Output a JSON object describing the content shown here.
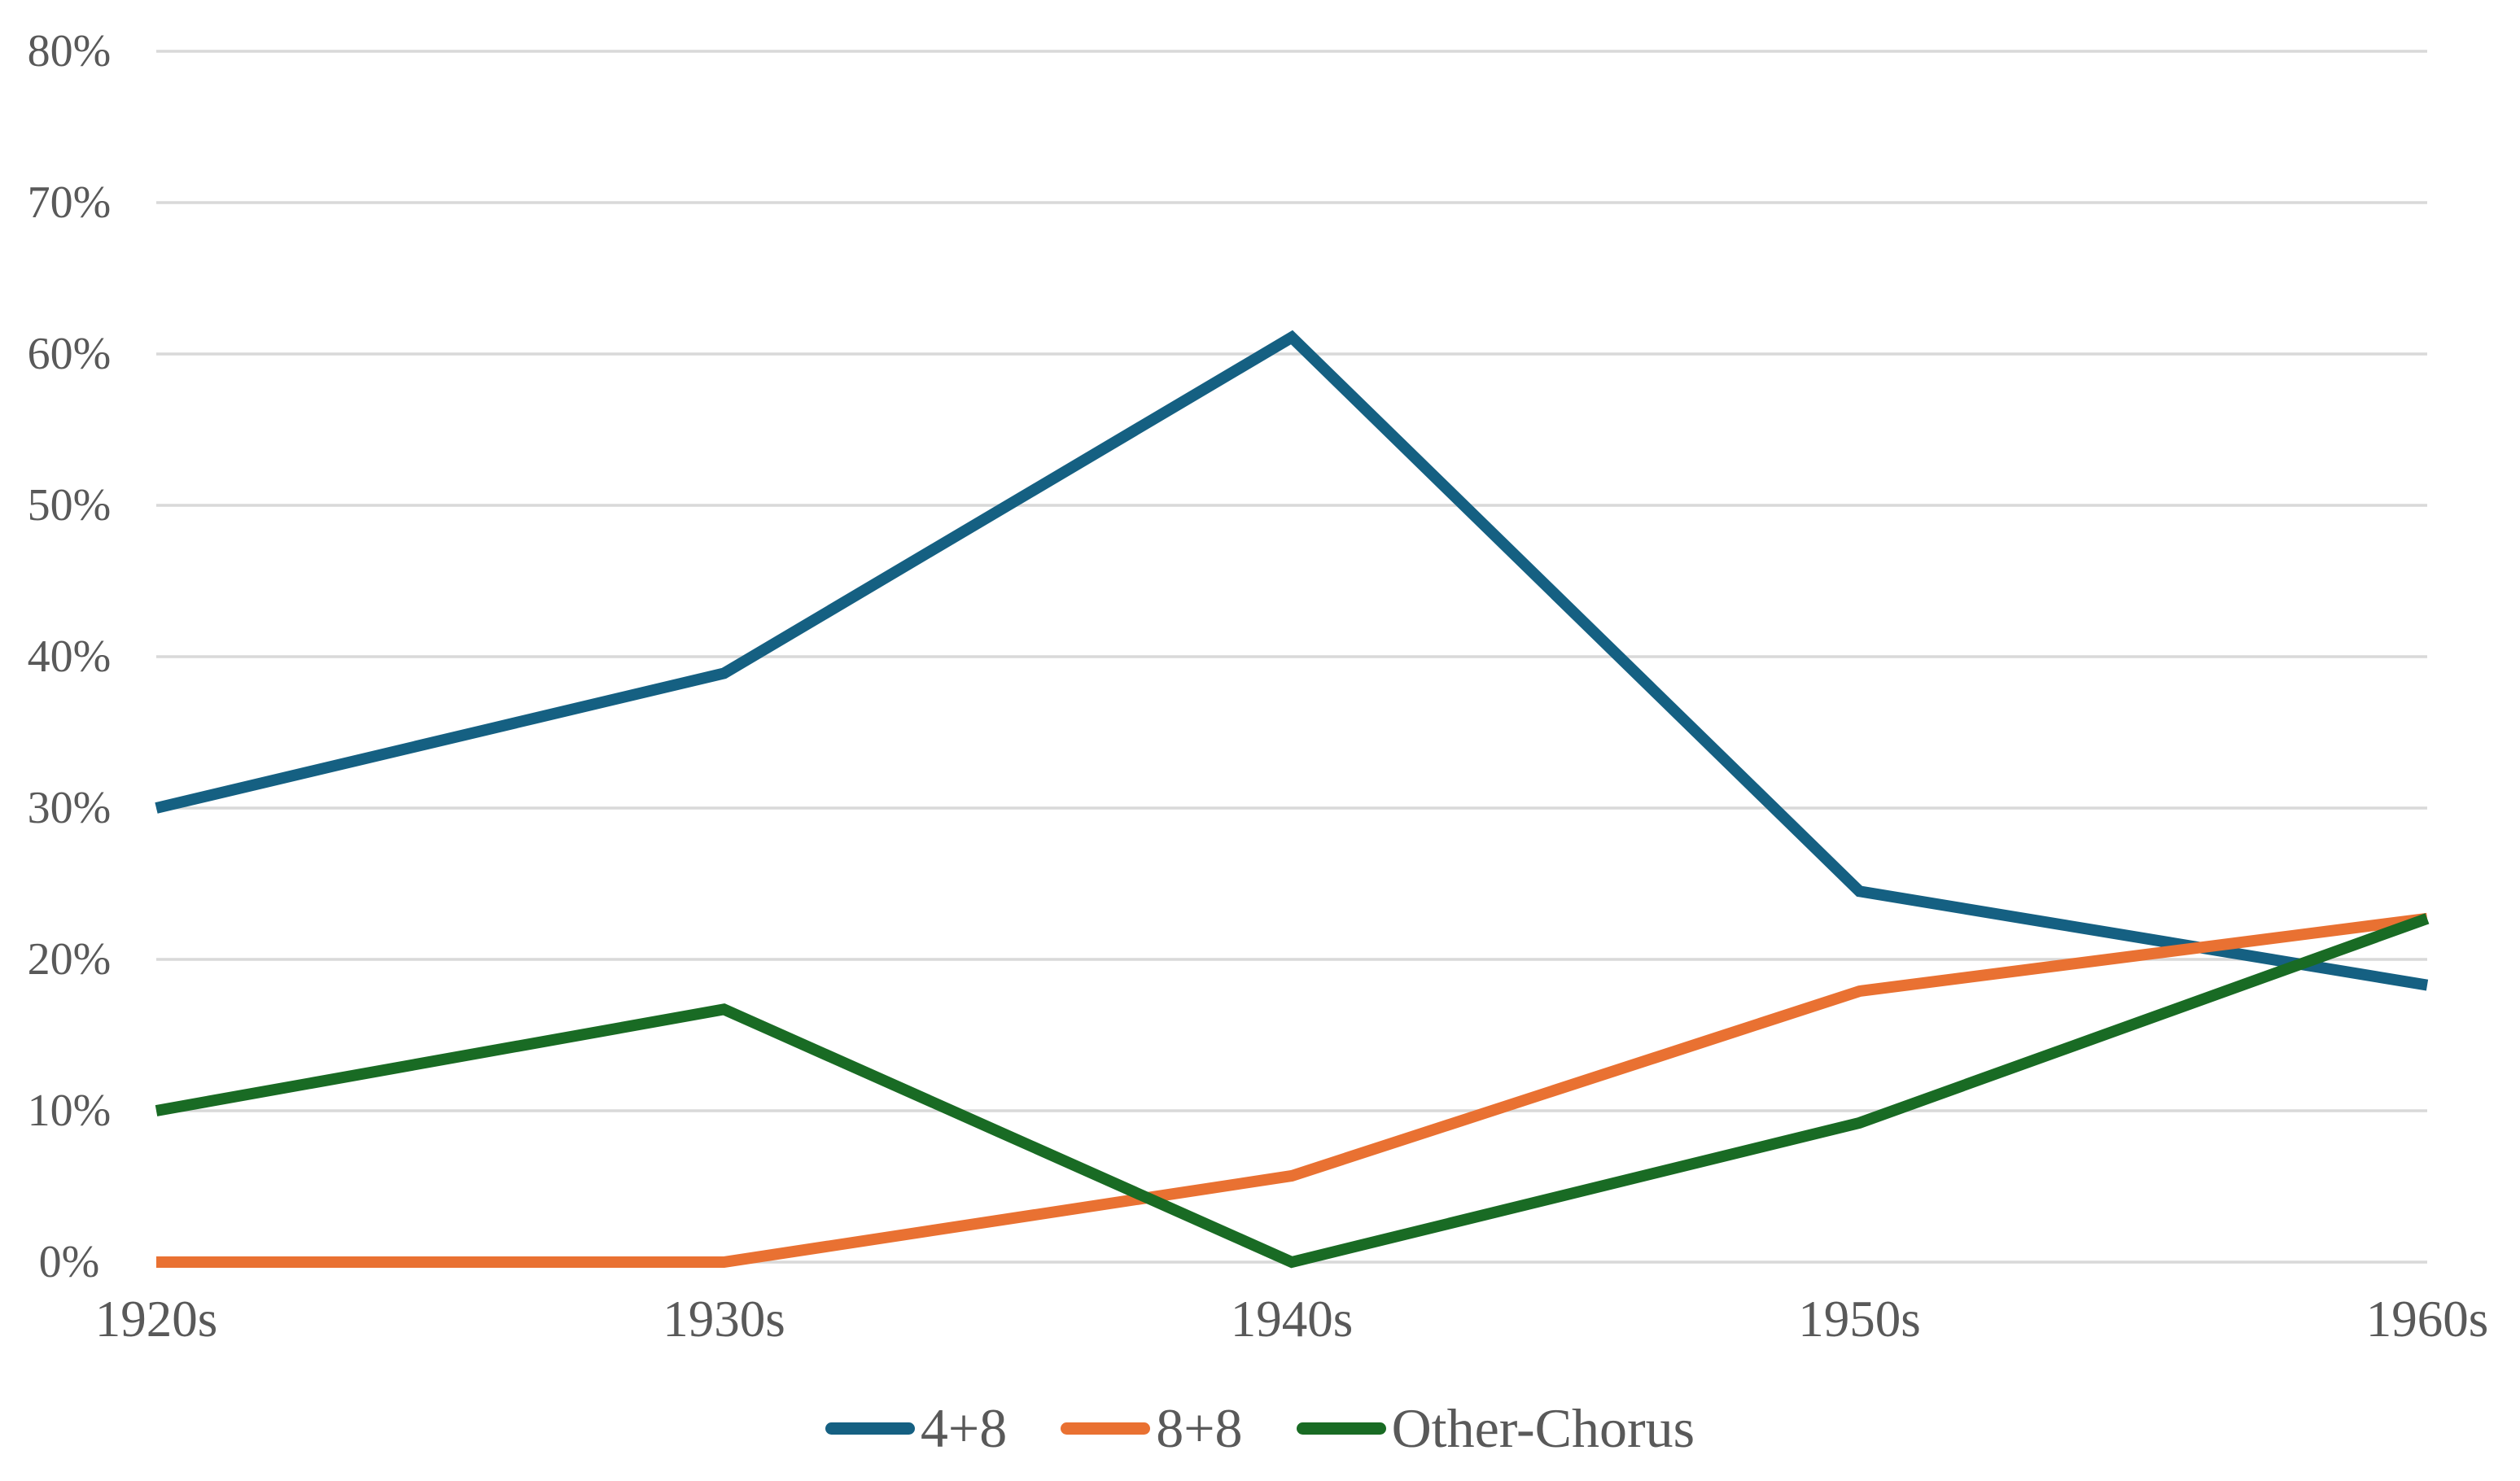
{
  "chart_data": {
    "type": "line",
    "categories": [
      "1920s",
      "1930s",
      "1940s",
      "1950s",
      "1960s"
    ],
    "series": [
      {
        "name": "4+8",
        "color": "#156082",
        "values": [
          30,
          38.9,
          61.1,
          24.5,
          18.3
        ]
      },
      {
        "name": "8+8",
        "color": "#E97132",
        "values": [
          0,
          0,
          5.7,
          17.9,
          22.7
        ]
      },
      {
        "name": "Other-Chorus",
        "color": "#196B24",
        "values": [
          10,
          16.7,
          0,
          9.2,
          22.7
        ]
      }
    ],
    "title": "",
    "xlabel": "",
    "ylabel": "",
    "ylim": [
      0,
      80
    ],
    "ytick_step": 10,
    "ytick_labels": [
      "0%",
      "10%",
      "20%",
      "30%",
      "40%",
      "50%",
      "60%",
      "70%",
      "80%"
    ],
    "grid": true,
    "legend_position": "bottom"
  },
  "style": {
    "gridline_color": "#D9D9D9",
    "axis_label_color": "#595959",
    "background_color": "#FFFFFF"
  }
}
